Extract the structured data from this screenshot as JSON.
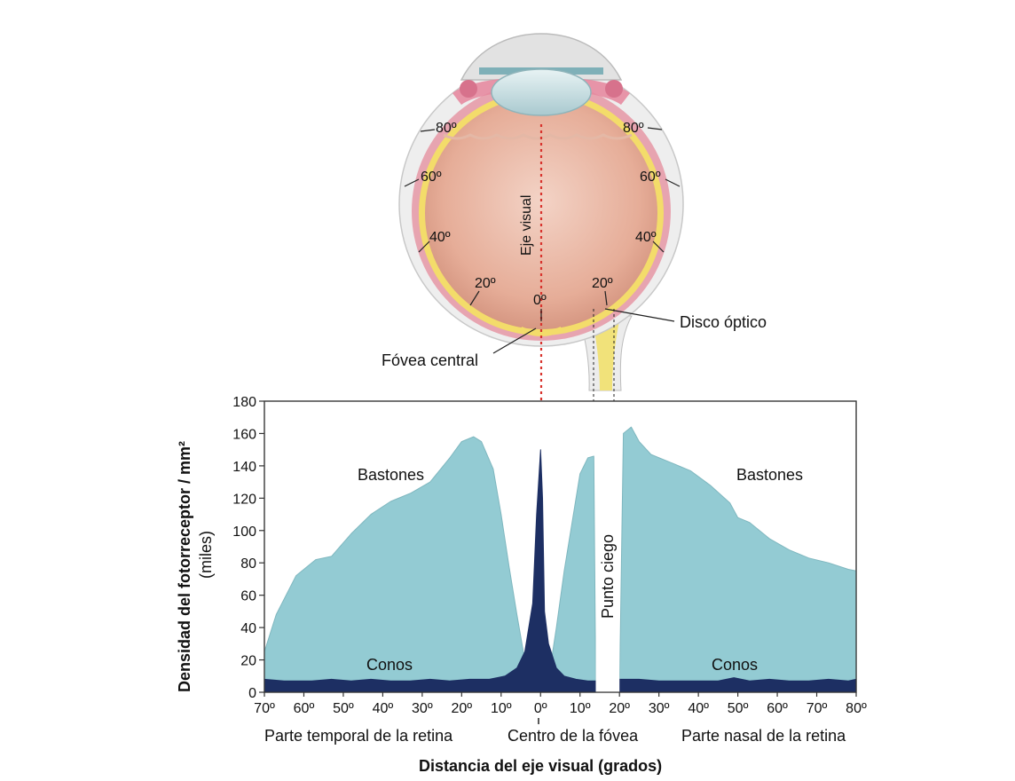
{
  "eye": {
    "visual_axis": "Eje visual",
    "fovea": "Fóvea central",
    "optic_disc": "Disco óptico",
    "temporal_angles": [
      "80º",
      "60º",
      "40º",
      "20º"
    ],
    "nasal_angles": [
      "80º",
      "60º",
      "40º",
      "20º"
    ],
    "center_angle": "0º"
  },
  "chart_data": {
    "type": "area",
    "ylabel": "Densidad del fotorreceptor / mm²",
    "ylabel2": "(miles)",
    "xlabel": "Distancia del eje visual (grados)",
    "ylim": [
      0,
      180
    ],
    "yticks": [
      "0",
      "20",
      "40",
      "60",
      "80",
      "100",
      "120",
      "140",
      "160",
      "180"
    ],
    "xticks": [
      "70º",
      "60º",
      "50º",
      "40º",
      "30º",
      "20º",
      "10º",
      "0º",
      "10º",
      "20º",
      "30º",
      "40º",
      "50º",
      "60º",
      "70º",
      "80º"
    ],
    "region_labels": {
      "temporal": "Parte temporal de la retina",
      "center": "Centro de la fóvea",
      "nasal": "Parte nasal de la retina"
    },
    "blind_spot_label": "Punto ciego",
    "blind_spot_range": [
      14,
      20
    ],
    "series": [
      {
        "name": "Bastones",
        "color": "#93cbd3",
        "x": [
          -70,
          -67,
          -62,
          -57,
          -53,
          -48,
          -43,
          -38,
          -33,
          -28,
          -23,
          -20,
          -17,
          -15,
          -12,
          -10,
          -8,
          -6,
          -4,
          -2,
          -1,
          1,
          2,
          4,
          6,
          8,
          10,
          12,
          13.5,
          14,
          20,
          21,
          23,
          25,
          28,
          33,
          38,
          43,
          48,
          50,
          53,
          58,
          63,
          68,
          73,
          78,
          80
        ],
        "y": [
          25,
          48,
          72,
          82,
          84,
          98,
          110,
          118,
          123,
          130,
          145,
          155,
          158,
          155,
          138,
          110,
          78,
          48,
          20,
          5,
          2,
          2,
          8,
          40,
          75,
          105,
          135,
          145,
          146,
          0,
          0,
          160,
          164,
          155,
          147,
          142,
          137,
          128,
          117,
          108,
          105,
          95,
          88,
          83,
          80,
          76,
          75
        ]
      },
      {
        "name": "Conos",
        "color": "#1d2f63",
        "x": [
          -70,
          -65,
          -58,
          -53,
          -48,
          -43,
          -38,
          -33,
          -28,
          -23,
          -18,
          -13,
          -9,
          -6,
          -4,
          -2,
          -1,
          0,
          0.5,
          1,
          2,
          4,
          6,
          9,
          12,
          14,
          20,
          25,
          30,
          35,
          40,
          45,
          49,
          53,
          58,
          63,
          68,
          73,
          78,
          80
        ],
        "y": [
          8,
          7,
          7,
          8,
          7,
          8,
          7,
          7,
          8,
          7,
          8,
          8,
          10,
          15,
          25,
          55,
          110,
          150,
          120,
          50,
          30,
          15,
          10,
          8,
          7,
          7,
          8,
          8,
          7,
          7,
          7,
          7,
          9,
          7,
          8,
          7,
          7,
          8,
          7,
          8
        ]
      }
    ]
  }
}
